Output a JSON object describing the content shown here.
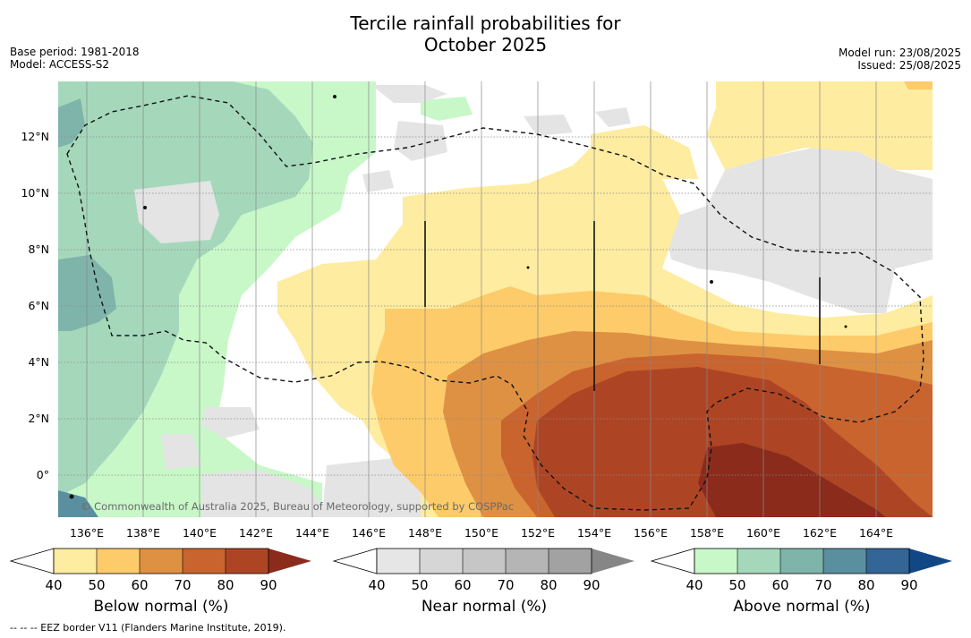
{
  "header": {
    "title_line1": "Tercile rainfall probabilities for",
    "title_line2": "October 2025",
    "base_period": "Base period: 1981-2018",
    "model": "Model: ACCESS-S2",
    "model_run": "Model run: 23/08/2025",
    "issued": "Issued: 25/08/2025"
  },
  "map": {
    "lat_labels": [
      "12°N",
      "10°N",
      "8°N",
      "6°N",
      "4°N",
      "2°N",
      "0°"
    ],
    "lon_labels": [
      "136°E",
      "138°E",
      "140°E",
      "142°E",
      "144°E",
      "146°E",
      "148°E",
      "150°E",
      "152°E",
      "154°E",
      "156°E",
      "158°E",
      "160°E",
      "162°E",
      "164°E"
    ],
    "lat_values": [
      12,
      10,
      8,
      6,
      4,
      2,
      0
    ],
    "lon_values": [
      136,
      138,
      140,
      142,
      144,
      146,
      148,
      150,
      152,
      154,
      156,
      158,
      160,
      162,
      164
    ],
    "extent": {
      "lon_min": 135,
      "lon_max": 166.1,
      "lat_min": -1.5,
      "lat_max": 13.9
    },
    "copyright": "© Commonwealth of Australia 2025, Bureau of Meteorology, supported by COSPPac"
  },
  "colorbars": [
    {
      "label": "Below normal (%)",
      "ticks": [
        "40",
        "50",
        "60",
        "70",
        "80",
        "90"
      ],
      "colors": [
        "#ffffff",
        "#feeca0",
        "#fdcb6a",
        "#de9143",
        "#c9642f",
        "#ad4525",
        "#8a2b1c"
      ]
    },
    {
      "label": "Near normal (%)",
      "ticks": [
        "40",
        "50",
        "60",
        "70",
        "80",
        "90"
      ],
      "colors": [
        "#ffffff",
        "#e6e6e6",
        "#d6d6d6",
        "#c6c6c6",
        "#b5b5b5",
        "#a2a2a2",
        "#868686"
      ]
    },
    {
      "label": "Above normal (%)",
      "ticks": [
        "40",
        "50",
        "60",
        "70",
        "80",
        "90"
      ],
      "colors": [
        "#ffffff",
        "#c8f8c8",
        "#a5d8bb",
        "#7fb4ab",
        "#5a8fa0",
        "#336596",
        "#124785"
      ]
    }
  ],
  "footnote": "--  --  -- EEZ border V11 (Flanders Marine Institute, 2019)."
}
